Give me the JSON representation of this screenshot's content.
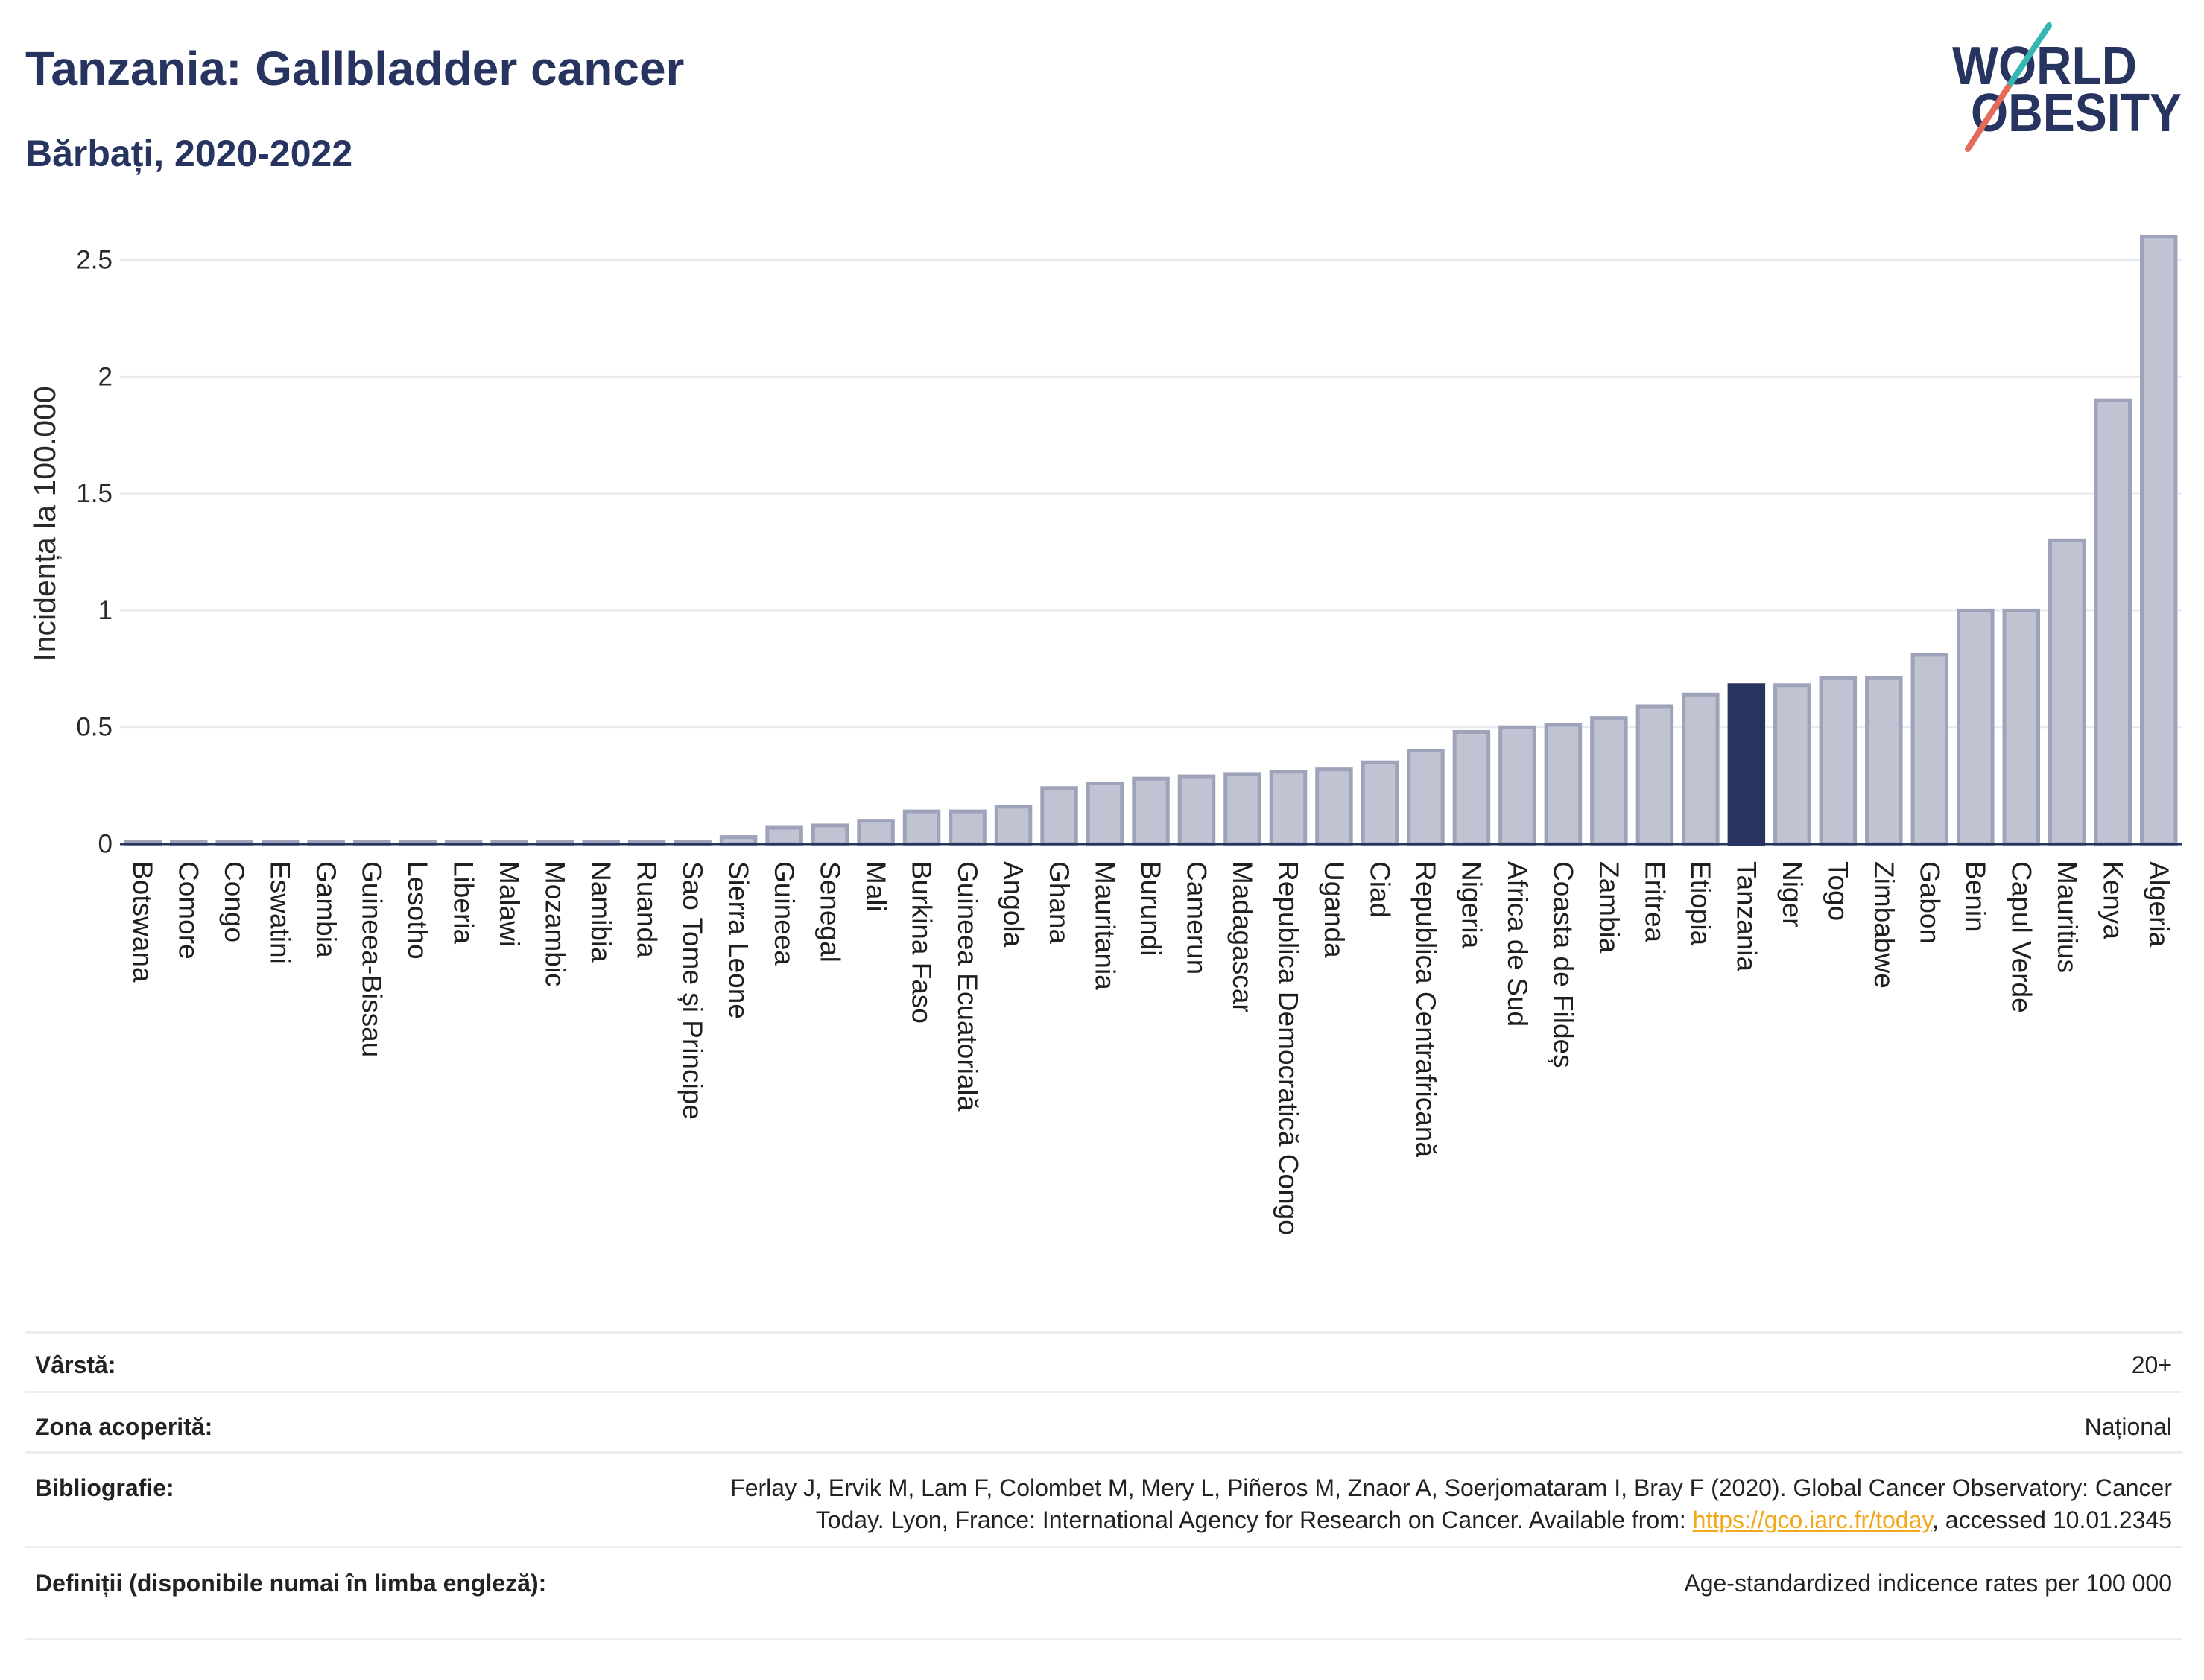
{
  "logo": {
    "line1": "WORLD",
    "line2": "OBESITY",
    "accent_top": "#35b8b3",
    "accent_bottom": "#e46b5a",
    "text_color": "#283460"
  },
  "chart_data": {
    "type": "bar",
    "title": "Tanzania: Gallbladder cancer",
    "subtitle": "Bărbați, 2020-2022",
    "xlabel": "",
    "ylabel": "Incidența la 100.000",
    "ylim": [
      0,
      2.75
    ],
    "yticks": [
      0,
      0.5,
      1,
      1.5,
      2,
      2.5
    ],
    "ytick_labels": [
      "0",
      "0.5",
      "1",
      "1.5",
      "2",
      "2.5"
    ],
    "grid": true,
    "categories": [
      "Botswana",
      "Comore",
      "Congo",
      "Eswatini",
      "Gambia",
      "Guineea-Bissau",
      "Lesotho",
      "Liberia",
      "Malawi",
      "Mozambic",
      "Namibia",
      "Ruanda",
      "Sao Tome și Principe",
      "Sierra Leone",
      "Guineea",
      "Senegal",
      "Mali",
      "Burkina Faso",
      "Guineea Ecuatorială",
      "Angola",
      "Ghana",
      "Mauritania",
      "Burundi",
      "Camerun",
      "Madagascar",
      "Republica Democratică Congo",
      "Uganda",
      "Ciad",
      "Republica Centrafricană",
      "Nigeria",
      "Africa de Sud",
      "Coasta de Fildeș",
      "Zambia",
      "Eritrea",
      "Etiopia",
      "Tanzania",
      "Niger",
      "Togo",
      "Zimbabwe",
      "Gabon",
      "Benin",
      "Capul Verde",
      "Mauritius",
      "Kenya",
      "Algeria"
    ],
    "values": [
      0.01,
      0.01,
      0.01,
      0.01,
      0.01,
      0.01,
      0.01,
      0.01,
      0.01,
      0.01,
      0.01,
      0.01,
      0.01,
      0.03,
      0.07,
      0.08,
      0.1,
      0.14,
      0.14,
      0.16,
      0.24,
      0.26,
      0.28,
      0.29,
      0.3,
      0.31,
      0.32,
      0.35,
      0.4,
      0.48,
      0.5,
      0.51,
      0.54,
      0.59,
      0.64,
      0.68,
      0.68,
      0.71,
      0.71,
      0.81,
      1.0,
      1.0,
      1.3,
      1.9,
      2.6
    ],
    "highlight_index": 35,
    "colors": {
      "bar": "#bfc3d2",
      "bar_border": "#9ea3ba",
      "highlight": "#283460",
      "grid": "#e8e9ee",
      "axis": "#283460"
    }
  },
  "info_table": {
    "rows": [
      {
        "label": "Vârstă:",
        "value": "20+"
      },
      {
        "label": "Zona acoperită:",
        "value": "Național"
      },
      {
        "label": "Bibliografie:",
        "value_line1": "Ferlay J, Ervik M, Lam F, Colombet M, Mery L, Piñeros M, Znaor A, Soerjomataram I, Bray F (2020). Global Cancer Observatory: Cancer",
        "value_line2_before": "Today. Lyon, France: International Agency for Research on Cancer. Available from: ",
        "link": "https://gco.iarc.fr/today",
        "value_line2_after": ", accessed 10.01.2345"
      },
      {
        "label": "Definiții (disponibile numai în limba engleză):",
        "value": "Age-standardized indicence rates per 100 000"
      }
    ],
    "link_color": "#f0a81c"
  }
}
